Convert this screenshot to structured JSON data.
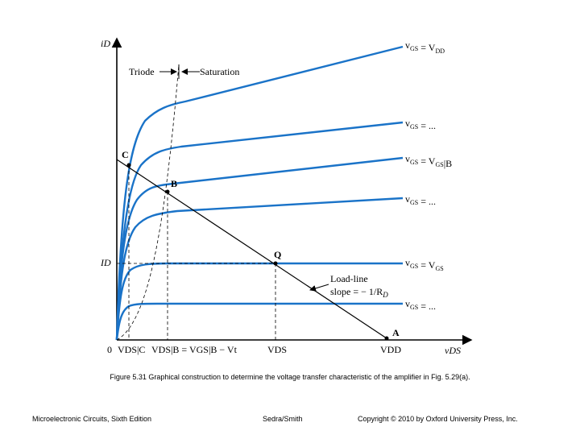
{
  "figure": {
    "axes": {
      "y_label": "iD",
      "x_label": "vDS",
      "origin_label": "0",
      "id_label": "ID"
    },
    "regions": {
      "triode": "Triode",
      "saturation": "Saturation"
    },
    "curve_labels": [
      {
        "v": "v",
        "sub": "GS",
        "rest": " = V",
        "rsub": "DD",
        "tail": ""
      },
      {
        "v": "v",
        "sub": "GS",
        "rest": " = ...",
        "rsub": "",
        "tail": ""
      },
      {
        "v": "v",
        "sub": "GS",
        "rest": " = V",
        "rsub": "GS",
        "tail": "|B"
      },
      {
        "v": "v",
        "sub": "GS",
        "rest": " = ...",
        "rsub": "",
        "tail": ""
      },
      {
        "v": "v",
        "sub": "GS",
        "rest": " = V",
        "rsub": "GS",
        "tail": ""
      },
      {
        "v": "v",
        "sub": "GS",
        "rest": " = ...",
        "rsub": "",
        "tail": ""
      }
    ],
    "points": {
      "a": "A",
      "b": "B",
      "c": "C",
      "q": "Q"
    },
    "load_line": {
      "line1": "Load-line",
      "line2": "slope = − 1/R",
      "line2_sub": "D"
    },
    "x_ticks": {
      "vds_c": "VDS|C",
      "vds_b": "VDS|B = VGS|B − Vt",
      "vds": "VDS",
      "vdd": "VDD"
    },
    "colors": {
      "curve": "#1a73c8",
      "axis": "#000000"
    }
  },
  "caption": "Figure 5.31 Graphical construction to determine the voltage transfer characteristic of the amplifier in Fig. 5.29(a).",
  "footer": {
    "left": "Microelectronic Circuits, Sixth Edition",
    "center": "Sedra/Smith",
    "right": "Copyright © 2010 by Oxford University Press, Inc."
  }
}
